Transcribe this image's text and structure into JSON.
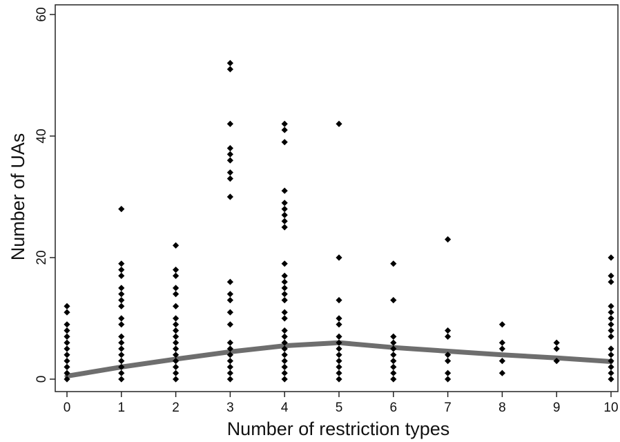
{
  "chart_data": {
    "type": "scatter",
    "title": "",
    "xlabel": "Number of restriction types",
    "ylabel": "Number of UAs",
    "xlim": [
      0,
      10
    ],
    "ylim": [
      0,
      60
    ],
    "x_ticks": [
      0,
      1,
      2,
      3,
      4,
      5,
      6,
      7,
      8,
      9,
      10
    ],
    "y_ticks": [
      0,
      20,
      40,
      60
    ],
    "grid": false,
    "legend": "none",
    "marker_color": "#000000",
    "line_color": "#6e6e6e",
    "points": [
      [
        0,
        0
      ],
      [
        0,
        1
      ],
      [
        0,
        2
      ],
      [
        0,
        3
      ],
      [
        0,
        4
      ],
      [
        0,
        5
      ],
      [
        0,
        6
      ],
      [
        0,
        7
      ],
      [
        0,
        8
      ],
      [
        0,
        9
      ],
      [
        0,
        11
      ],
      [
        0,
        12
      ],
      [
        1,
        0
      ],
      [
        1,
        1
      ],
      [
        1,
        2
      ],
      [
        1,
        3
      ],
      [
        1,
        4
      ],
      [
        1,
        5
      ],
      [
        1,
        6
      ],
      [
        1,
        7
      ],
      [
        1,
        9
      ],
      [
        1,
        10
      ],
      [
        1,
        12
      ],
      [
        1,
        13
      ],
      [
        1,
        14
      ],
      [
        1,
        15
      ],
      [
        1,
        17
      ],
      [
        1,
        18
      ],
      [
        1,
        19
      ],
      [
        1,
        28
      ],
      [
        2,
        0
      ],
      [
        2,
        1
      ],
      [
        2,
        2
      ],
      [
        2,
        3
      ],
      [
        2,
        4
      ],
      [
        2,
        5
      ],
      [
        2,
        6
      ],
      [
        2,
        7
      ],
      [
        2,
        8
      ],
      [
        2,
        9
      ],
      [
        2,
        10
      ],
      [
        2,
        12
      ],
      [
        2,
        14
      ],
      [
        2,
        15
      ],
      [
        2,
        17
      ],
      [
        2,
        18
      ],
      [
        2,
        22
      ],
      [
        3,
        0
      ],
      [
        3,
        1
      ],
      [
        3,
        2
      ],
      [
        3,
        3
      ],
      [
        3,
        4
      ],
      [
        3,
        5
      ],
      [
        3,
        6
      ],
      [
        3,
        9
      ],
      [
        3,
        11
      ],
      [
        3,
        13
      ],
      [
        3,
        14
      ],
      [
        3,
        16
      ],
      [
        3,
        30
      ],
      [
        3,
        33
      ],
      [
        3,
        34
      ],
      [
        3,
        36
      ],
      [
        3,
        37
      ],
      [
        3,
        38
      ],
      [
        3,
        42
      ],
      [
        3,
        51
      ],
      [
        3,
        52
      ],
      [
        4,
        0
      ],
      [
        4,
        1
      ],
      [
        4,
        2
      ],
      [
        4,
        3
      ],
      [
        4,
        4
      ],
      [
        4,
        5
      ],
      [
        4,
        6
      ],
      [
        4,
        7
      ],
      [
        4,
        8
      ],
      [
        4,
        10
      ],
      [
        4,
        11
      ],
      [
        4,
        13
      ],
      [
        4,
        14
      ],
      [
        4,
        15
      ],
      [
        4,
        16
      ],
      [
        4,
        17
      ],
      [
        4,
        19
      ],
      [
        4,
        25
      ],
      [
        4,
        26
      ],
      [
        4,
        27
      ],
      [
        4,
        28
      ],
      [
        4,
        29
      ],
      [
        4,
        31
      ],
      [
        4,
        39
      ],
      [
        4,
        41
      ],
      [
        4,
        42
      ],
      [
        5,
        0
      ],
      [
        5,
        1
      ],
      [
        5,
        2
      ],
      [
        5,
        3
      ],
      [
        5,
        4
      ],
      [
        5,
        5
      ],
      [
        5,
        6
      ],
      [
        5,
        7
      ],
      [
        5,
        9
      ],
      [
        5,
        10
      ],
      [
        5,
        13
      ],
      [
        5,
        20
      ],
      [
        5,
        42
      ],
      [
        6,
        0
      ],
      [
        6,
        1
      ],
      [
        6,
        2
      ],
      [
        6,
        3
      ],
      [
        6,
        4
      ],
      [
        6,
        5
      ],
      [
        6,
        6
      ],
      [
        6,
        7
      ],
      [
        6,
        13
      ],
      [
        6,
        19
      ],
      [
        7,
        0
      ],
      [
        7,
        1
      ],
      [
        7,
        3
      ],
      [
        7,
        4
      ],
      [
        7,
        7
      ],
      [
        7,
        8
      ],
      [
        7,
        23
      ],
      [
        8,
        1
      ],
      [
        8,
        3
      ],
      [
        8,
        5
      ],
      [
        8,
        6
      ],
      [
        8,
        9
      ],
      [
        9,
        3
      ],
      [
        9,
        5
      ],
      [
        9,
        6
      ],
      [
        10,
        0
      ],
      [
        10,
        1
      ],
      [
        10,
        2
      ],
      [
        10,
        3
      ],
      [
        10,
        4
      ],
      [
        10,
        5
      ],
      [
        10,
        7
      ],
      [
        10,
        8
      ],
      [
        10,
        9
      ],
      [
        10,
        10
      ],
      [
        10,
        11
      ],
      [
        10,
        12
      ],
      [
        10,
        16
      ],
      [
        10,
        17
      ],
      [
        10,
        20
      ]
    ],
    "fit_line": {
      "x": [
        0,
        1,
        2,
        3,
        4,
        5,
        6,
        7,
        8,
        9,
        10
      ],
      "y": [
        0.5,
        2.0,
        3.3,
        4.5,
        5.5,
        6.0,
        5.2,
        4.6,
        4.0,
        3.5,
        2.9
      ]
    }
  }
}
